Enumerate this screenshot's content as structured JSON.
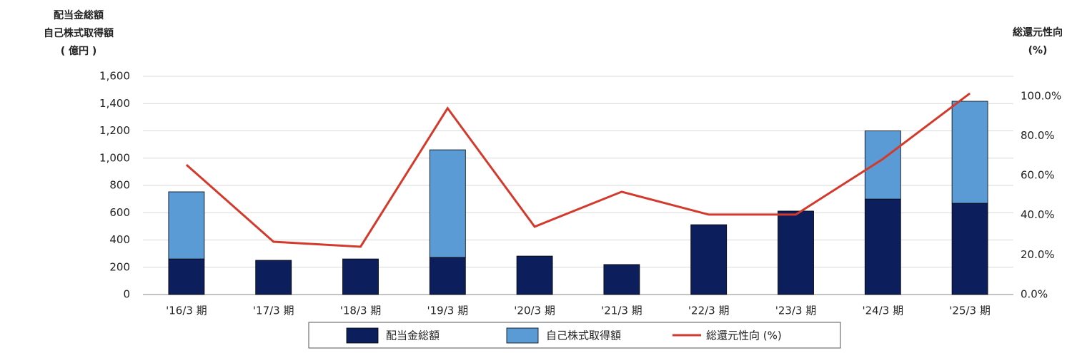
{
  "chart_data": {
    "type": "bar",
    "stacked": true,
    "y_label": [
      "配当金総額",
      "自己株式取得額",
      "( 億円 )"
    ],
    "y2_label": [
      "総還元性向",
      "(%)"
    ],
    "categories": [
      "'16/3 期",
      "'17/3 期",
      "'18/3 期",
      "'19/3 期",
      "'20/3 期",
      "'21/3 期",
      "'22/3 期",
      "'23/3 期",
      "'24/3 期",
      "'25/3 期"
    ],
    "series": [
      {
        "name": "配当金総額",
        "type": "bar",
        "color": "#0c1f5c",
        "values": [
          261,
          251,
          261,
          272,
          282,
          220,
          512,
          612,
          700,
          669
        ]
      },
      {
        "name": "自己株式取得額",
        "type": "bar",
        "color": "#5b9bd5",
        "values": [
          492,
          null,
          null,
          789,
          null,
          null,
          null,
          null,
          500,
          748
        ]
      },
      {
        "name": "総還元性向 (%)",
        "type": "line",
        "axis": "y2",
        "color": "#d33a2c",
        "values": [
          65.4,
          26.6,
          24.1,
          93.9,
          34.2,
          51.8,
          40.3,
          40.3,
          68.3,
          101.4
        ]
      }
    ],
    "ylim": [
      0,
      1600
    ],
    "yticks": [
      0,
      200,
      400,
      600,
      800,
      {
        "value": 1000,
        "label": "1,000"
      },
      {
        "value": 1200,
        "label": "1,200"
      },
      {
        "value": 1400,
        "label": "1,400"
      },
      {
        "value": 1600,
        "label": "1,600"
      }
    ],
    "y2lim": [
      0,
      110
    ],
    "y2ticks": [
      {
        "value": 0,
        "label": "0.0%"
      },
      {
        "value": 20,
        "label": "20.0%"
      },
      {
        "value": 40,
        "label": "40.0%"
      },
      {
        "value": 60,
        "label": "60.0%"
      },
      {
        "value": 80,
        "label": "80.0%"
      },
      {
        "value": 100,
        "label": "100.0%"
      }
    ],
    "grid": true
  }
}
